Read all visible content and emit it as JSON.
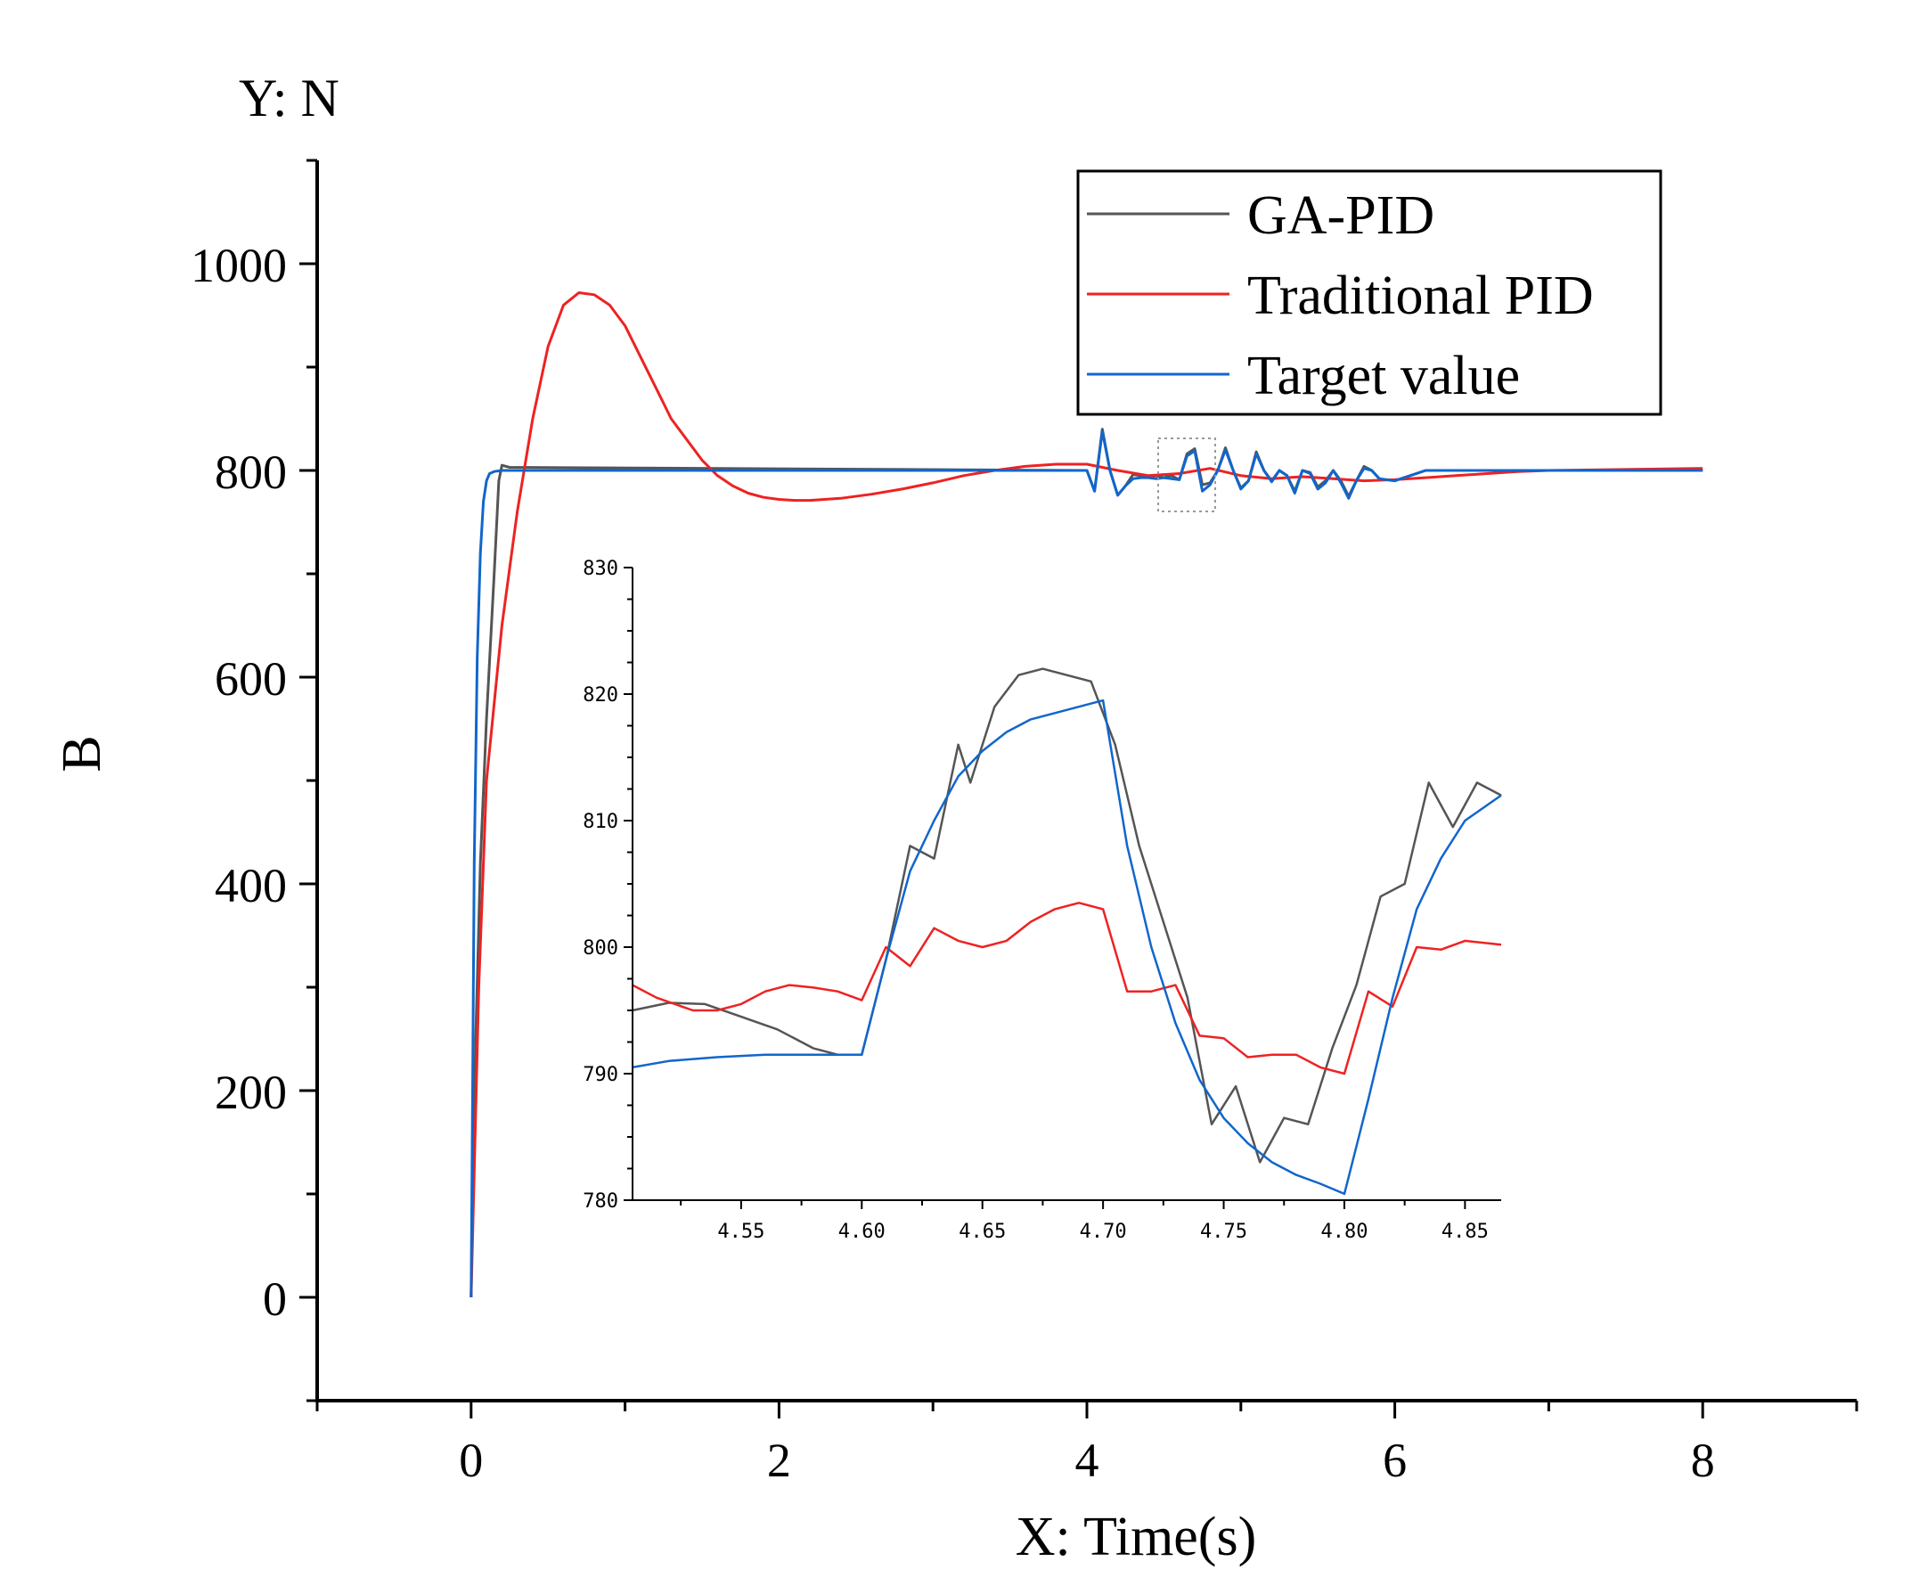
{
  "chart_data": [
    {
      "id": "main",
      "type": "line",
      "title": "",
      "corner_label": "Y: N",
      "xlabel": "X: Time(s)",
      "ylabel": "B",
      "xlim": [
        -1,
        9
      ],
      "ylim": [
        -100,
        1100
      ],
      "xticks": [
        0,
        2,
        4,
        6,
        8
      ],
      "xtick_labels": [
        "0",
        "2",
        "4",
        "6",
        "8"
      ],
      "yticks": [
        0,
        200,
        400,
        600,
        800,
        1000
      ],
      "ytick_labels": [
        "0",
        "200",
        "400",
        "600",
        "800",
        "1000"
      ],
      "grid": false,
      "legend_position": "top-right",
      "legend": [
        "GA-PID",
        "Traditional PID",
        "Target value"
      ],
      "colors": {
        "GA-PID": "#555555",
        "Traditional PID": "#ee2222",
        "Target value": "#1166cc"
      },
      "series": [
        {
          "name": "GA-PID",
          "x": [
            0,
            0.01,
            0.03,
            0.06,
            0.1,
            0.15,
            0.18,
            0.2,
            0.25,
            4.0,
            4.05,
            4.1,
            4.15,
            4.2,
            4.25,
            4.3,
            4.35,
            4.4,
            4.45,
            4.5,
            4.55,
            4.6,
            4.65,
            4.7,
            4.75,
            4.8,
            4.85,
            4.9,
            4.95,
            5.0,
            5.05,
            5.1,
            5.15,
            5.2,
            5.25,
            5.3,
            5.35,
            5.4,
            5.45,
            5.5,
            5.55,
            5.6,
            5.65,
            5.7,
            5.75,
            5.8,
            5.85,
            5.9,
            6.0,
            6.2,
            8.0
          ],
          "y": [
            0,
            100,
            250,
            420,
            560,
            700,
            790,
            805,
            803,
            800,
            780,
            840,
            800,
            776,
            785,
            796,
            795,
            794,
            795,
            793,
            795,
            791,
            816,
            821,
            786,
            788,
            800,
            822,
            800,
            783,
            790,
            818,
            800,
            790,
            800,
            795,
            780,
            800,
            798,
            784,
            790,
            800,
            790,
            775,
            790,
            804,
            800,
            792,
            790,
            800,
            800
          ]
        },
        {
          "name": "Traditional PID",
          "x": [
            0,
            0.05,
            0.1,
            0.2,
            0.3,
            0.4,
            0.5,
            0.6,
            0.7,
            0.8,
            0.9,
            1.0,
            1.1,
            1.2,
            1.3,
            1.4,
            1.5,
            1.6,
            1.7,
            1.8,
            1.9,
            2.0,
            2.1,
            2.2,
            2.4,
            2.6,
            2.8,
            3.0,
            3.2,
            3.4,
            3.6,
            3.8,
            4.0,
            4.2,
            4.4,
            4.6,
            4.8,
            5.0,
            5.2,
            5.4,
            5.6,
            5.8,
            6.0,
            6.2,
            6.4,
            6.6,
            6.8,
            7.0,
            8.0
          ],
          "y": [
            0,
            300,
            500,
            650,
            760,
            850,
            920,
            960,
            972,
            970,
            960,
            940,
            910,
            880,
            850,
            830,
            810,
            795,
            785,
            778,
            774,
            772,
            771,
            771,
            773,
            777,
            782,
            788,
            795,
            800,
            804,
            806,
            806,
            800,
            795,
            797,
            802,
            795,
            792,
            794,
            792,
            790,
            791,
            793,
            795,
            797,
            799,
            800,
            802
          ]
        },
        {
          "name": "Target value",
          "x": [
            0,
            0.01,
            0.02,
            0.04,
            0.06,
            0.08,
            0.1,
            0.12,
            0.15,
            0.2,
            4.0,
            4.05,
            4.1,
            4.15,
            4.2,
            4.25,
            4.3,
            4.35,
            4.4,
            4.45,
            4.5,
            4.55,
            4.6,
            4.65,
            4.7,
            4.75,
            4.8,
            4.85,
            4.9,
            4.95,
            5.0,
            5.05,
            5.1,
            5.15,
            5.2,
            5.25,
            5.3,
            5.35,
            5.4,
            5.45,
            5.5,
            5.55,
            5.6,
            5.65,
            5.7,
            5.75,
            5.8,
            5.85,
            5.9,
            6.0,
            6.2,
            8.0
          ],
          "y": [
            0,
            200,
            420,
            620,
            720,
            770,
            790,
            797,
            799,
            800,
            800,
            780,
            838,
            800,
            776,
            785,
            792,
            793,
            793,
            792,
            793,
            792,
            791,
            814,
            819,
            780,
            786,
            800,
            820,
            800,
            782,
            790,
            816,
            800,
            789,
            800,
            795,
            778,
            800,
            797,
            782,
            788,
            800,
            788,
            773,
            790,
            802,
            800,
            792,
            790,
            800,
            800
          ]
        }
      ]
    },
    {
      "id": "inset",
      "type": "line",
      "xlim": [
        4.505,
        4.865
      ],
      "ylim": [
        780,
        830
      ],
      "xticks": [
        4.55,
        4.6,
        4.65,
        4.7,
        4.75,
        4.8,
        4.85
      ],
      "xtick_labels": [
        "4.55",
        "4.60",
        "4.65",
        "4.70",
        "4.75",
        "4.80",
        "4.85"
      ],
      "yticks": [
        780,
        790,
        800,
        810,
        820,
        830
      ],
      "ytick_labels": [
        "780",
        "790",
        "800",
        "810",
        "820",
        "830"
      ],
      "grid": false,
      "series": [
        {
          "name": "GA-PID",
          "x": [
            4.505,
            4.52,
            4.535,
            4.55,
            4.565,
            4.58,
            4.59,
            4.6,
            4.61,
            4.62,
            4.63,
            4.64,
            4.645,
            4.655,
            4.665,
            4.675,
            4.685,
            4.695,
            4.705,
            4.715,
            4.725,
            4.735,
            4.745,
            4.755,
            4.765,
            4.775,
            4.785,
            4.795,
            4.805,
            4.815,
            4.825,
            4.835,
            4.845,
            4.855,
            4.865
          ],
          "y": [
            795,
            795.6,
            795.5,
            794.5,
            793.5,
            792,
            791.5,
            791.5,
            799,
            808,
            807,
            816,
            813,
            819,
            821.5,
            822,
            821.5,
            821,
            816,
            808,
            802,
            796,
            786,
            789,
            783,
            786.5,
            786,
            792,
            797,
            804,
            805,
            813,
            809.5,
            813,
            812
          ]
        },
        {
          "name": "Traditional PID",
          "x": [
            4.505,
            4.515,
            4.53,
            4.54,
            4.55,
            4.56,
            4.57,
            4.58,
            4.59,
            4.6,
            4.61,
            4.62,
            4.63,
            4.64,
            4.65,
            4.66,
            4.67,
            4.68,
            4.69,
            4.7,
            4.71,
            4.72,
            4.73,
            4.74,
            4.75,
            4.76,
            4.77,
            4.78,
            4.79,
            4.8,
            4.81,
            4.82,
            4.83,
            4.84,
            4.85,
            4.865
          ],
          "y": [
            797,
            796,
            795,
            795,
            795.5,
            796.5,
            797,
            796.8,
            796.5,
            795.8,
            800,
            798.5,
            801.5,
            800.5,
            800,
            800.5,
            802,
            803,
            803.5,
            803,
            796.5,
            796.5,
            797,
            793,
            792.8,
            791.3,
            791.5,
            791.5,
            790.5,
            790,
            796.5,
            795.3,
            800,
            799.8,
            800.5,
            800.2
          ]
        },
        {
          "name": "Target value",
          "x": [
            4.505,
            4.52,
            4.54,
            4.56,
            4.58,
            4.6,
            4.61,
            4.62,
            4.63,
            4.64,
            4.65,
            4.66,
            4.67,
            4.68,
            4.69,
            4.7,
            4.71,
            4.72,
            4.73,
            4.74,
            4.75,
            4.76,
            4.77,
            4.78,
            4.79,
            4.8,
            4.81,
            4.82,
            4.83,
            4.84,
            4.85,
            4.865
          ],
          "y": [
            790.5,
            791,
            791.3,
            791.5,
            791.5,
            791.5,
            799,
            806,
            810,
            813.5,
            815.5,
            817,
            818,
            818.5,
            819,
            819.5,
            808,
            800,
            794,
            789.5,
            786.5,
            784.5,
            783,
            782,
            781.3,
            780.5,
            788,
            796,
            803,
            807,
            810,
            812
          ]
        }
      ]
    }
  ]
}
